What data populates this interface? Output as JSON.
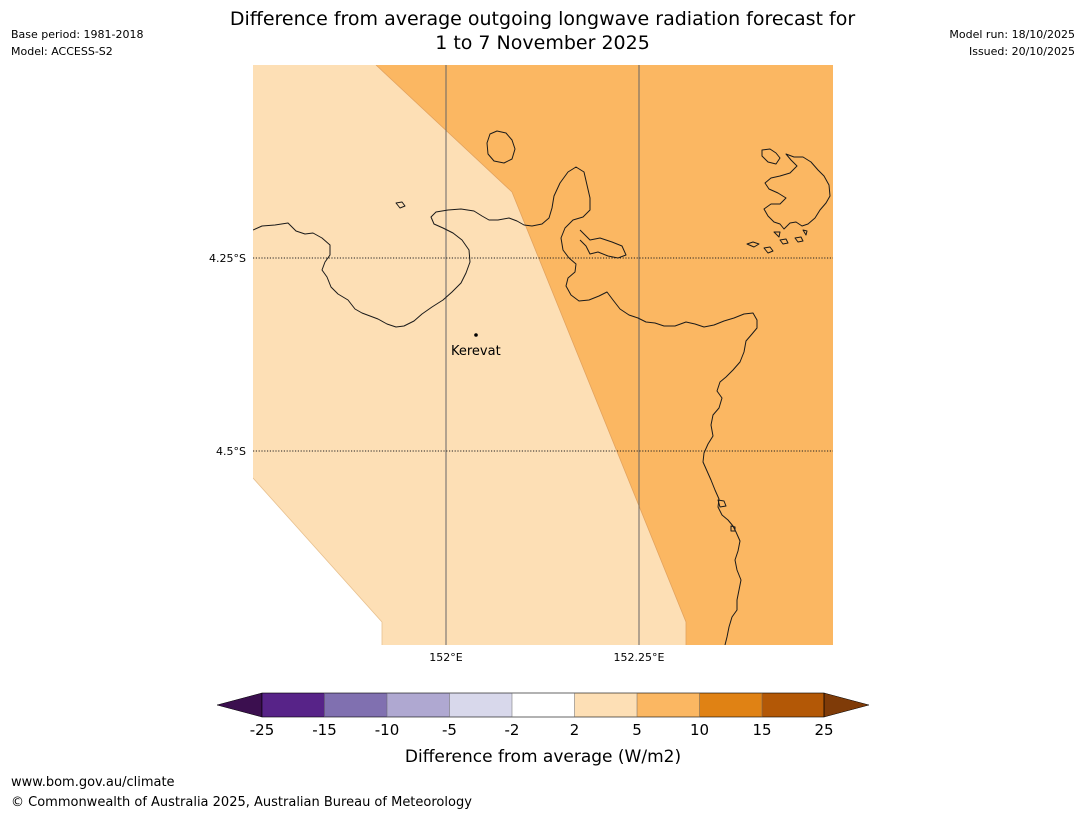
{
  "header": {
    "title_line1": "Difference from average outgoing longwave radiation forecast for",
    "title_line2": "1 to 7 November 2025",
    "base_period": "Base period: 1981-2018",
    "model": "Model: ACCESS-S2",
    "model_run": "Model run: 18/10/2025",
    "issued": "Issued: 20/10/2025"
  },
  "map": {
    "lat_labels": [
      "4.25°S",
      "4.5°S"
    ],
    "lon_labels": [
      "152°E",
      "152.25°E"
    ],
    "place": "Kerevat",
    "colors": {
      "no_data": "#ffffff",
      "band_2_5": "#fddfb5",
      "band_5_10": "#fbb762",
      "coast": "#1a1a1a",
      "grid": "#555555"
    }
  },
  "legend": {
    "label": "Difference from average (W/m2)",
    "ticks": [
      "-25",
      "-15",
      "-10",
      "-5",
      "-2",
      "2",
      "5",
      "10",
      "15",
      "25"
    ],
    "colors": [
      "#3b0f4f",
      "#572388",
      "#8070b0",
      "#afa8d1",
      "#d8d8eb",
      "#ffffff",
      "#fddfb5",
      "#fbb762",
      "#e08214",
      "#b35806",
      "#7f3b08"
    ]
  },
  "footer": {
    "url": "www.bom.gov.au/climate",
    "copyright": "© Commonwealth of Australia 2025, Australian Bureau of Meteorology"
  }
}
